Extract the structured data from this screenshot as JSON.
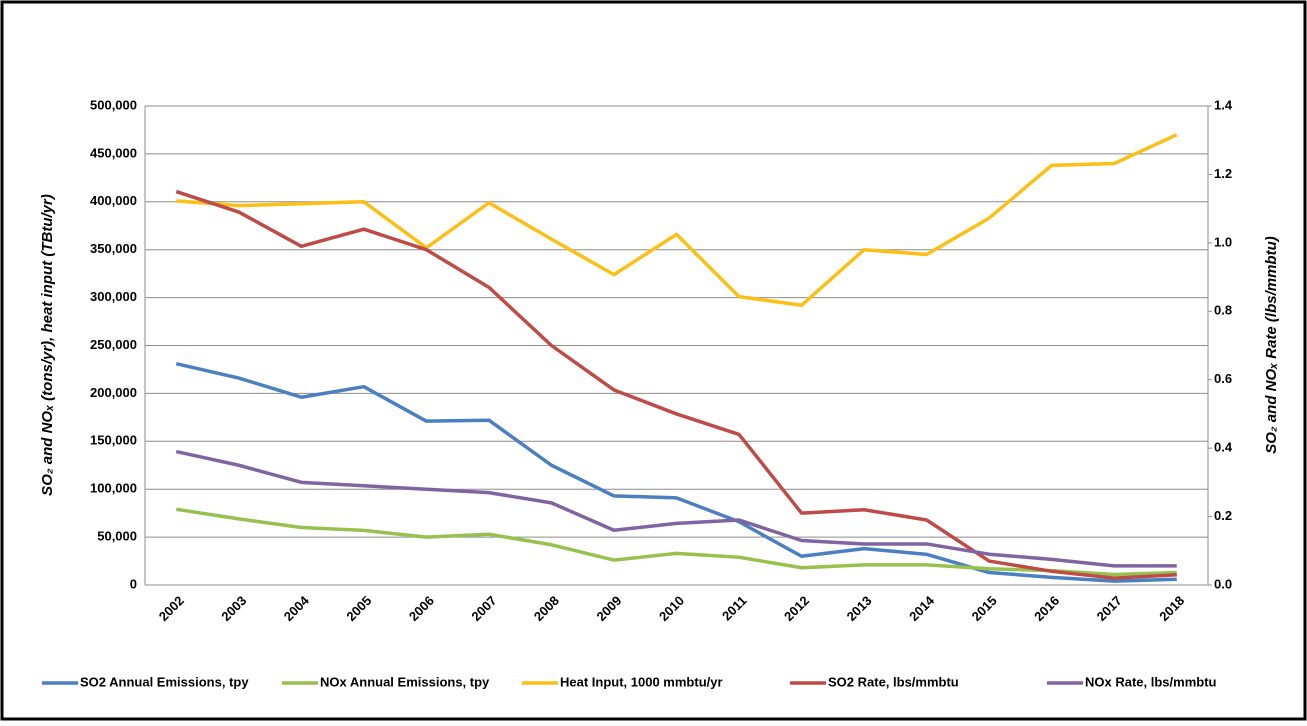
{
  "chart_data": {
    "type": "line",
    "y_label": "SO₂ and NOₓ (tons/yr), heat input (TBtu/yr)",
    "y2_label": "SO₂ and NOₓ Rate (lbs/mmbtu)",
    "categories": [
      "2002",
      "2003",
      "2004",
      "2005",
      "2006",
      "2007",
      "2008",
      "2009",
      "2010",
      "2011",
      "2012",
      "2013",
      "2014",
      "2015",
      "2016",
      "2017",
      "2018"
    ],
    "series": [
      {
        "name": "SO2 Annual Emissions, tpy",
        "color": "#4a7fc1",
        "values": [
          231000,
          216000,
          196000,
          207000,
          171000,
          172000,
          125000,
          93000,
          91000,
          66000,
          30000,
          38000,
          32000,
          13000,
          8000,
          4000,
          6000
        ]
      },
      {
        "name": "NOx Annual Emissions, tpy",
        "color": "#97c14f",
        "values": [
          79000,
          69000,
          60000,
          57000,
          50000,
          53000,
          42000,
          26000,
          33000,
          29000,
          18000,
          21000,
          21000,
          17000,
          15000,
          11000,
          13000
        ]
      },
      {
        "name": "Heat Input, 1000 mmbtu/yr",
        "color": "#fcbf16",
        "values": [
          401000,
          396000,
          398000,
          400000,
          352000,
          399000,
          361000,
          324000,
          366000,
          301000,
          292000,
          350000,
          345000,
          383000,
          438000,
          440000,
          470000
        ]
      },
      {
        "name": "SO2 Rate, lbs/mmbtu",
        "color": "#bf4b47",
        "axis": "y2",
        "values": [
          1.15,
          1.09,
          0.99,
          1.04,
          0.98,
          0.87,
          0.7,
          0.57,
          0.5,
          0.44,
          0.21,
          0.22,
          0.19,
          0.07,
          0.04,
          0.02,
          0.03
        ]
      },
      {
        "name": "NOx Rate, lbs/mmbtu",
        "color": "#8064a2",
        "axis": "y2",
        "values": [
          0.39,
          0.35,
          0.3,
          0.29,
          0.28,
          0.27,
          0.24,
          0.16,
          0.18,
          0.19,
          0.13,
          0.12,
          0.12,
          0.09,
          0.075,
          0.056,
          0.056
        ]
      }
    ],
    "ylim": [
      0,
      500000
    ],
    "yticks": [
      0,
      {
        "value": 50000,
        "label": "50,000"
      },
      {
        "value": 100000,
        "label": "100,000"
      },
      {
        "value": 150000,
        "label": "150,000"
      },
      {
        "value": 200000,
        "label": "200,000"
      },
      {
        "value": 250000,
        "label": "250,000"
      },
      {
        "value": 300000,
        "label": "300,000"
      },
      {
        "value": 350000,
        "label": "350,000"
      },
      {
        "value": 400000,
        "label": "400,000"
      },
      {
        "value": 450000,
        "label": "450,000"
      },
      {
        "value": 500000,
        "label": "500,000"
      }
    ],
    "y2lim": [
      0,
      1.4
    ],
    "y2ticks": [
      {
        "value": 0,
        "label": "0.0"
      },
      0.2,
      0.4,
      0.6,
      0.8,
      {
        "value": 1,
        "label": "1.0"
      },
      1.2,
      1.4
    ],
    "grid": true,
    "legend": "bottom"
  }
}
